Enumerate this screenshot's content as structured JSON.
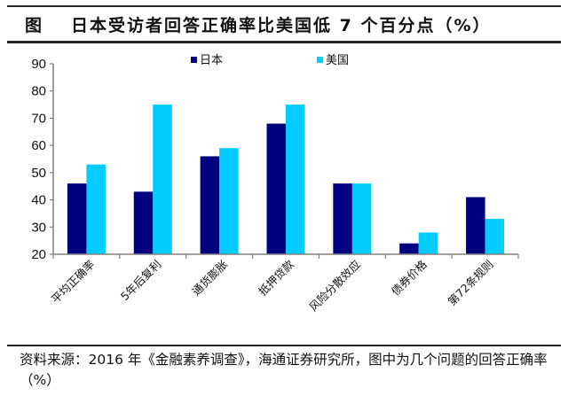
{
  "header": {
    "label": "图",
    "title": "日本受访者回答正确率比美国低 7 个百分点（%）"
  },
  "legend": {
    "items": [
      {
        "name": "日本",
        "color": "#000080"
      },
      {
        "name": "美国",
        "color": "#00CCFF"
      }
    ]
  },
  "footer": {
    "source": "资料来源：2016 年《金融素养调查》，海通证券研究所，图中为几个问题的回答正确率（%）"
  },
  "chart_data": {
    "type": "bar",
    "title": "日本受访者回答正确率比美国低 7 个百分点（%）",
    "xlabel": "",
    "ylabel": "",
    "ylim": [
      20,
      90
    ],
    "yticks": [
      20,
      30,
      40,
      50,
      60,
      70,
      80,
      90
    ],
    "grid": false,
    "legend_position": "top",
    "categories": [
      "平均正确率",
      "5年后复利",
      "通货膨胀",
      "抵押贷款",
      "风险分散效应",
      "债券价格",
      "第72条规则"
    ],
    "series": [
      {
        "name": "日本",
        "color": "#000080",
        "values": [
          46,
          43,
          56,
          68,
          46,
          24,
          41
        ]
      },
      {
        "name": "美国",
        "color": "#00CCFF",
        "values": [
          53,
          75,
          59,
          75,
          46,
          28,
          33
        ]
      }
    ]
  }
}
